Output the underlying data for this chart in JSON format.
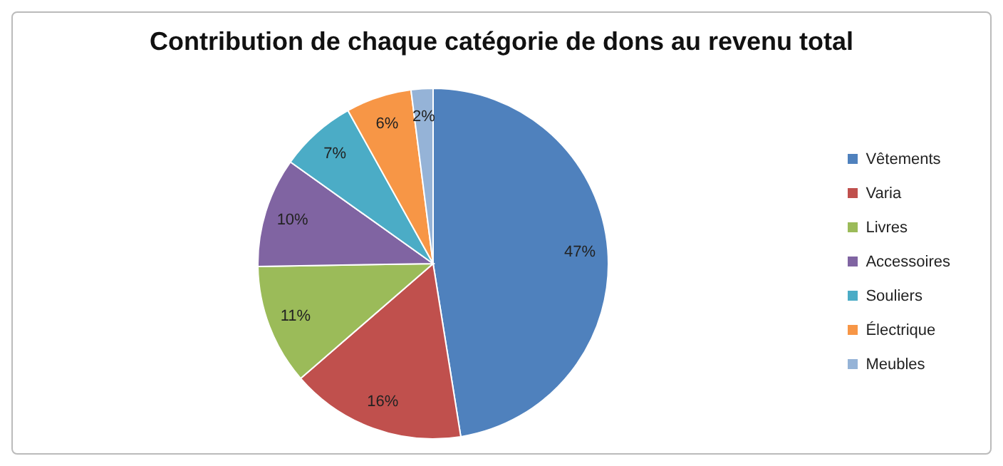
{
  "chart_data": {
    "type": "pie",
    "title": "Contribution de chaque catégorie de dons au revenu total",
    "categories": [
      "Vêtements",
      "Varia",
      "Livres",
      "Accessoires",
      "Souliers",
      "Électrique",
      "Meubles"
    ],
    "values": [
      47,
      16,
      11,
      10,
      7,
      6,
      2
    ],
    "colors": [
      "#4f81bd",
      "#c0504d",
      "#9bbb59",
      "#8064a2",
      "#4bacc6",
      "#f79646",
      "#95b3d7"
    ],
    "value_labels": [
      "47%",
      "16%",
      "11%",
      "10%",
      "7%",
      "6%",
      "2%"
    ],
    "legend": "right"
  }
}
